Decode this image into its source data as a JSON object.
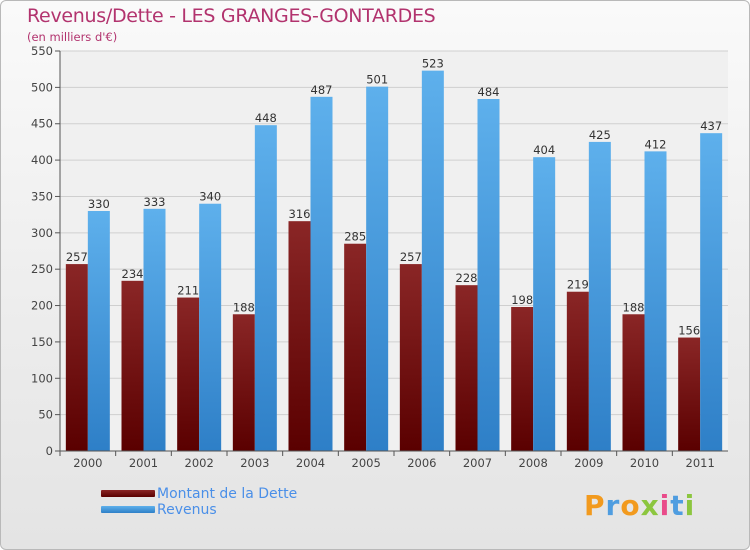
{
  "header": {
    "title": "Revenus/Dette - LES GRANGES-GONTARDES",
    "subtitle": "(en milliers d'€)"
  },
  "colors": {
    "title": "#b2336e",
    "dette_top": "#8a2626",
    "dette_bottom": "#5a0000",
    "revenus_top": "#5eb0ec",
    "revenus_bottom": "#2e7fc7",
    "legend_text": "#4a8fe8"
  },
  "chart_data": {
    "type": "bar",
    "categories": [
      "2000",
      "2001",
      "2002",
      "2003",
      "2004",
      "2005",
      "2006",
      "2007",
      "2008",
      "2009",
      "2010",
      "2011"
    ],
    "series": [
      {
        "name": "Montant de la Dette",
        "values": [
          257,
          234,
          211,
          188,
          316,
          285,
          257,
          228,
          198,
          219,
          188,
          156
        ]
      },
      {
        "name": "Revenus",
        "values": [
          330,
          333,
          340,
          448,
          487,
          501,
          523,
          484,
          404,
          425,
          412,
          437
        ]
      }
    ],
    "yticks": [
      0,
      50,
      100,
      150,
      200,
      250,
      300,
      350,
      400,
      450,
      500,
      550
    ],
    "ylim": [
      0,
      550
    ],
    "grid": true,
    "legend_position": "bottom-left"
  },
  "legend": {
    "items": [
      {
        "label": "Montant de la Dette",
        "icon": "dark-red-swatch"
      },
      {
        "label": "Revenus",
        "icon": "blue-swatch"
      }
    ]
  },
  "logo": {
    "letters": [
      "P",
      "r",
      "o",
      "x",
      "i",
      "t",
      "i"
    ],
    "colors": [
      "#f29a1e",
      "#4f9de0",
      "#f29a1e",
      "#8cc63f",
      "#e94b8a",
      "#4f9de0",
      "#8cc63f"
    ]
  }
}
